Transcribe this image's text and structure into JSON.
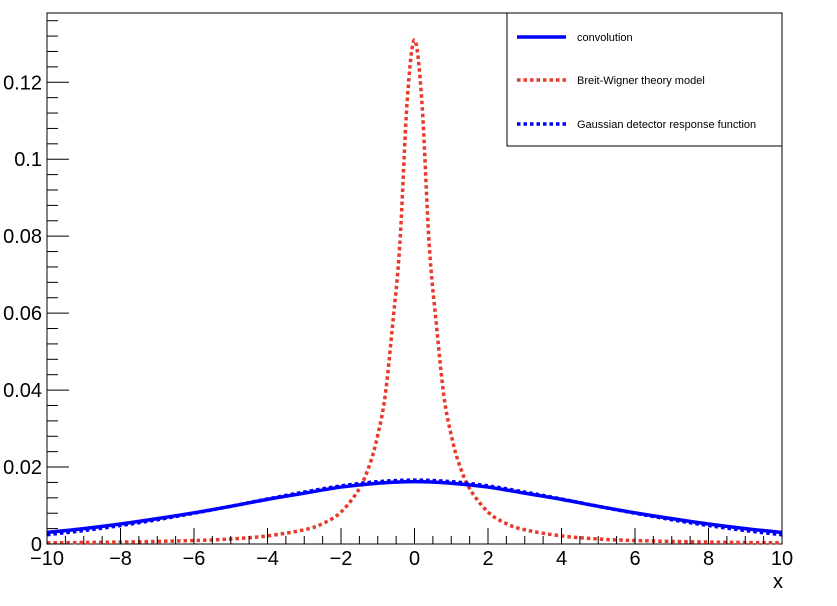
{
  "chart_data": {
    "type": "line",
    "title": "",
    "xlabel": "x",
    "ylabel": "",
    "xlim": [
      -10,
      10
    ],
    "ylim": [
      0,
      0.138
    ],
    "x_ticks": [
      -10,
      -8,
      -6,
      -4,
      -2,
      0,
      2,
      4,
      6,
      8,
      10
    ],
    "x_tick_labels": [
      "−10",
      "−8",
      "−6",
      "−4",
      "−2",
      "0",
      "2",
      "4",
      "6",
      "8",
      "10"
    ],
    "y_ticks": [
      0,
      0.02,
      0.04,
      0.06,
      0.08,
      0.1,
      0.12
    ],
    "y_tick_labels": [
      "0",
      "0.02",
      "0.04",
      "0.06",
      "0.08",
      "0.1",
      "0.12"
    ],
    "grid": false,
    "legend_position": "top-right",
    "series": [
      {
        "name": "convolution",
        "color": "#0000ff",
        "style": "solid",
        "x": [
          -10,
          -9,
          -8,
          -7,
          -6,
          -5,
          -4,
          -3,
          -2,
          -1,
          0,
          1,
          2,
          3,
          4,
          5,
          6,
          7,
          8,
          9,
          10
        ],
        "y": [
          0.003,
          0.004,
          0.0052,
          0.0066,
          0.0081,
          0.0098,
          0.0116,
          0.0132,
          0.0148,
          0.0158,
          0.0162,
          0.0158,
          0.0148,
          0.0132,
          0.0116,
          0.0098,
          0.0081,
          0.0066,
          0.0052,
          0.004,
          0.003
        ]
      },
      {
        "name": "Breit-Wigner theory model",
        "color": "#e8392b",
        "style": "dotted",
        "x": [
          -10,
          -8,
          -6,
          -5,
          -4,
          -3,
          -2.5,
          -2,
          -1.5,
          -1.2,
          -1,
          -0.8,
          -0.6,
          -0.4,
          -0.2,
          0,
          0.2,
          0.4,
          0.6,
          0.8,
          1,
          1.2,
          1.5,
          2,
          2.5,
          3,
          4,
          5,
          6,
          8,
          10
        ],
        "y": [
          0.0003,
          0.0005,
          0.0009,
          0.0013,
          0.0021,
          0.0037,
          0.0053,
          0.0083,
          0.0144,
          0.0212,
          0.0283,
          0.0384,
          0.0566,
          0.0778,
          0.115,
          0.131,
          0.115,
          0.0778,
          0.0566,
          0.0384,
          0.0283,
          0.0212,
          0.0144,
          0.0083,
          0.0053,
          0.0037,
          0.0021,
          0.0013,
          0.0009,
          0.0005,
          0.0003
        ]
      },
      {
        "name": "Gaussian detector response function",
        "color": "#0000ff",
        "style": "dotted",
        "x": [
          -10,
          -9,
          -8,
          -7,
          -6,
          -5,
          -4,
          -3,
          -2,
          -1,
          0,
          1,
          2,
          3,
          4,
          5,
          6,
          7,
          8,
          9,
          10
        ],
        "y": [
          0.0024,
          0.0035,
          0.0048,
          0.0063,
          0.008,
          0.0098,
          0.0117,
          0.0135,
          0.0151,
          0.0162,
          0.0166,
          0.0162,
          0.0151,
          0.0135,
          0.0117,
          0.0098,
          0.008,
          0.0063,
          0.0048,
          0.0035,
          0.0024
        ]
      }
    ]
  }
}
